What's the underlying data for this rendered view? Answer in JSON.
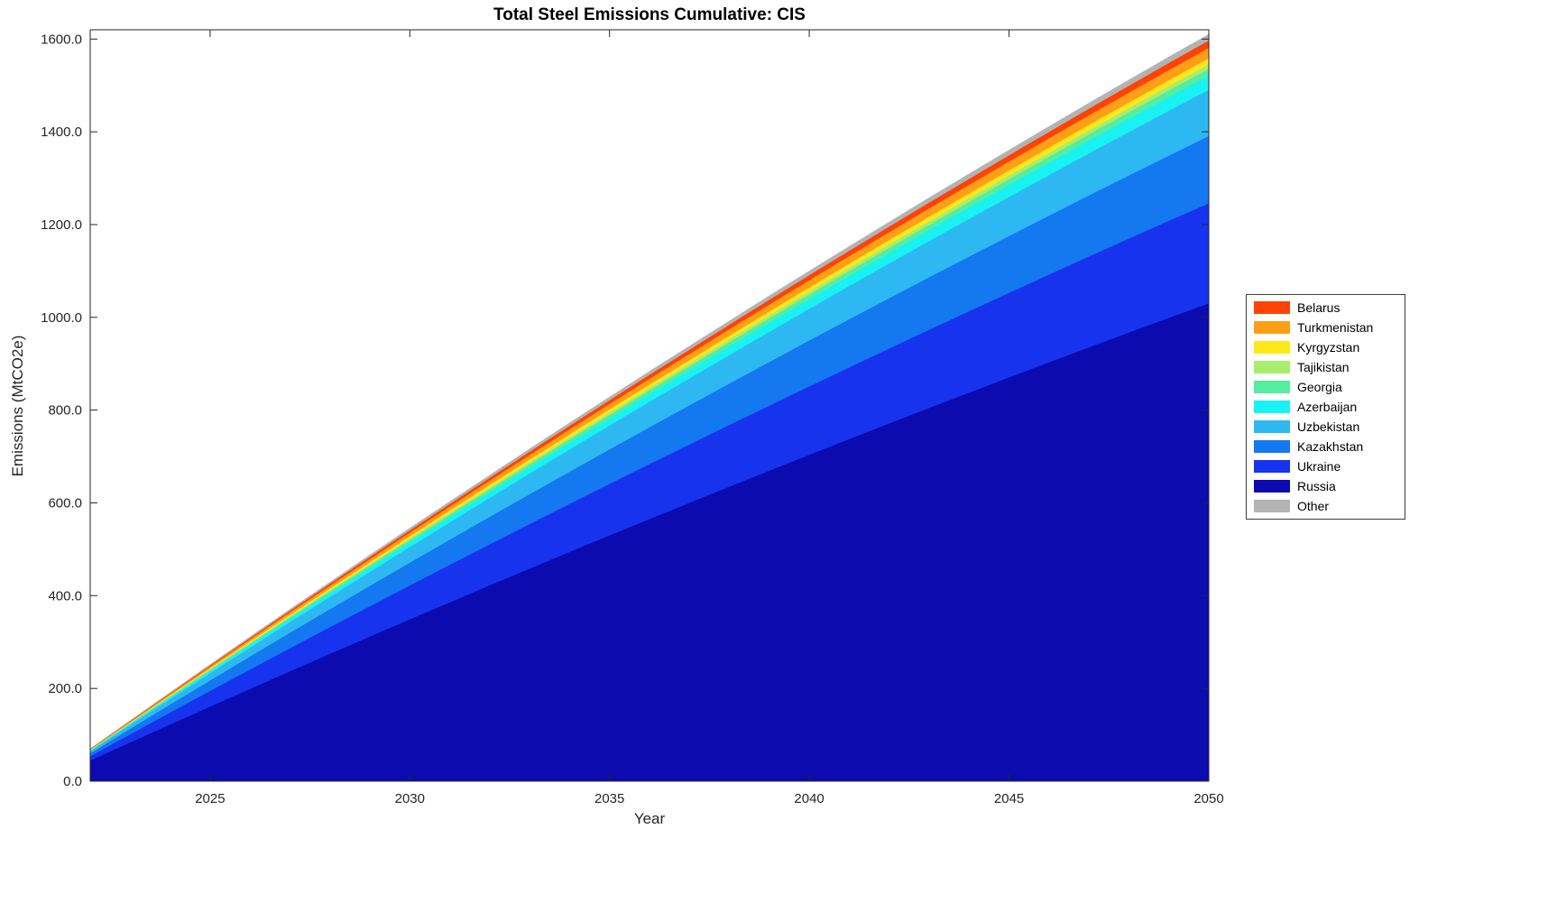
{
  "chart_data": {
    "type": "area",
    "stacked": true,
    "title": "Total Steel Emissions Cumulative: CIS",
    "xlabel": "Year",
    "ylabel": "Emissions (MtCO2e)",
    "units": "MtCO2e",
    "xlim": [
      2022,
      2050
    ],
    "ylim": [
      0,
      1620
    ],
    "grid": false,
    "legend_position": "right-outside",
    "x": [
      2022,
      2023,
      2024,
      2025,
      2026,
      2027,
      2028,
      2029,
      2030,
      2031,
      2032,
      2033,
      2034,
      2035,
      2036,
      2037,
      2038,
      2039,
      2040,
      2041,
      2042,
      2043,
      2044,
      2045,
      2046,
      2047,
      2048,
      2049,
      2050
    ],
    "xticks": [
      2025,
      2030,
      2035,
      2040,
      2045,
      2050
    ],
    "xtick_labels": [
      "2025",
      "2030",
      "2035",
      "2040",
      "2045",
      "2050"
    ],
    "yticks": [
      0,
      200,
      400,
      600,
      800,
      1000,
      1200,
      1400,
      1600
    ],
    "ytick_labels": [
      "0.0",
      "200.0",
      "400.0",
      "600.0",
      "800.0",
      "1000.0",
      "1200.0",
      "1400.0",
      "1600.0"
    ],
    "series": [
      {
        "name": "Russia",
        "color": "#0B0BB0",
        "values": [
          44.8,
          83.8,
          122.6,
          161.1,
          199.2,
          237.2,
          274.8,
          312.1,
          349.2,
          385.9,
          422.4,
          458.6,
          494.5,
          530.1,
          565.5,
          600.5,
          635.3,
          669.8,
          704.0,
          738.0,
          771.6,
          805.0,
          838.0,
          870.8,
          903.4,
          935.6,
          967.5,
          999.2,
          1030.5
        ]
      },
      {
        "name": "Ukraine",
        "color": "#1733EE",
        "values": [
          9.4,
          17.6,
          25.7,
          33.7,
          41.7,
          49.7,
          57.5,
          65.4,
          73.1,
          80.8,
          88.4,
          96.0,
          103.5,
          111.0,
          118.4,
          125.7,
          133.0,
          140.2,
          147.4,
          154.5,
          161.6,
          168.5,
          175.5,
          182.3,
          189.1,
          195.9,
          202.6,
          209.2,
          215.8
        ]
      },
      {
        "name": "Kazakhstan",
        "color": "#1478F0",
        "values": [
          6.3,
          11.8,
          17.2,
          22.7,
          28.0,
          33.4,
          38.6,
          43.9,
          49.1,
          54.3,
          59.4,
          64.5,
          69.5,
          74.5,
          79.5,
          84.4,
          89.3,
          94.2,
          99.0,
          103.8,
          108.5,
          113.2,
          117.8,
          122.5,
          127.0,
          131.6,
          136.1,
          140.5,
          144.9
        ]
      },
      {
        "name": "Uzbekistan",
        "color": "#2EB8F2",
        "values": [
          4.3,
          8.1,
          11.9,
          15.6,
          19.3,
          23.0,
          26.6,
          30.2,
          33.8,
          37.4,
          40.9,
          44.4,
          47.9,
          51.4,
          54.8,
          58.2,
          61.5,
          64.9,
          68.2,
          71.5,
          74.7,
          78.0,
          81.2,
          84.4,
          87.5,
          90.6,
          93.7,
          96.8,
          99.8
        ]
      },
      {
        "name": "Azerbaijan",
        "color": "#18F2F2",
        "values": [
          1.3,
          2.5,
          3.6,
          4.8,
          5.9,
          7.0,
          8.2,
          9.3,
          10.4,
          11.5,
          12.5,
          13.6,
          14.7,
          15.7,
          16.8,
          17.8,
          18.9,
          19.9,
          20.9,
          21.9,
          22.9,
          23.9,
          24.9,
          25.9,
          26.8,
          27.8,
          28.7,
          29.7,
          30.6
        ]
      },
      {
        "name": "Georgia",
        "color": "#55EDA0",
        "values": [
          0.6,
          1.2,
          1.7,
          2.3,
          2.8,
          3.3,
          3.9,
          4.4,
          4.9,
          5.4,
          5.9,
          6.4,
          7.0,
          7.5,
          8.0,
          8.4,
          8.9,
          9.4,
          9.9,
          10.4,
          10.9,
          11.3,
          11.8,
          12.2,
          12.7,
          13.2,
          13.6,
          14.1,
          14.5
        ]
      },
      {
        "name": "Tajikistan",
        "color": "#A8ED6E",
        "values": [
          0.4,
          0.8,
          1.1,
          1.5,
          1.9,
          2.2,
          2.6,
          2.9,
          3.3,
          3.6,
          4.0,
          4.3,
          4.6,
          5.0,
          5.3,
          5.6,
          6.0,
          6.3,
          6.6,
          6.9,
          7.2,
          7.5,
          7.9,
          8.2,
          8.5,
          8.8,
          9.1,
          9.4,
          9.7
        ]
      },
      {
        "name": "Kyrgyzstan",
        "color": "#FFE81A",
        "values": [
          0.6,
          1.0,
          1.5,
          2.0,
          2.5,
          3.0,
          3.4,
          3.9,
          4.4,
          4.8,
          5.3,
          5.7,
          6.2,
          6.6,
          7.1,
          7.5,
          7.9,
          8.4,
          8.8,
          9.2,
          9.6,
          10.1,
          10.5,
          10.9,
          11.3,
          11.7,
          12.1,
          12.5,
          12.9
        ]
      },
      {
        "name": "Turkmenistan",
        "color": "#FF9E17",
        "values": [
          1.0,
          1.8,
          2.7,
          3.5,
          4.4,
          5.2,
          6.0,
          6.8,
          7.6,
          8.4,
          9.2,
          10.0,
          10.8,
          11.6,
          12.4,
          13.1,
          13.9,
          14.7,
          15.4,
          16.1,
          16.9,
          17.6,
          18.3,
          19.0,
          19.8,
          20.5,
          21.2,
          21.9,
          22.5
        ]
      },
      {
        "name": "Belarus",
        "color": "#FF4205",
        "values": [
          0.7,
          1.3,
          1.9,
          2.5,
          3.1,
          3.7,
          4.3,
          4.9,
          5.5,
          6.0,
          6.6,
          7.2,
          7.7,
          8.3,
          8.8,
          9.4,
          9.9,
          10.5,
          11.0,
          11.5,
          12.1,
          12.6,
          13.1,
          13.6,
          14.1,
          14.6,
          15.1,
          15.6,
          16.1
        ]
      },
      {
        "name": "Other",
        "color": "#B3B3B3",
        "values": [
          0.6,
          1.0,
          1.5,
          2.0,
          2.5,
          3.0,
          3.4,
          3.9,
          4.4,
          4.8,
          5.3,
          5.7,
          6.2,
          6.6,
          7.1,
          7.5,
          7.9,
          8.4,
          8.8,
          9.2,
          9.6,
          10.1,
          10.5,
          10.9,
          11.3,
          11.7,
          12.1,
          12.5,
          12.9
        ]
      }
    ],
    "legend": [
      "Belarus",
      "Turkmenistan",
      "Kyrgyzstan",
      "Tajikistan",
      "Georgia",
      "Azerbaijan",
      "Uzbekistan",
      "Kazakhstan",
      "Ukraine",
      "Russia",
      "Other"
    ]
  }
}
